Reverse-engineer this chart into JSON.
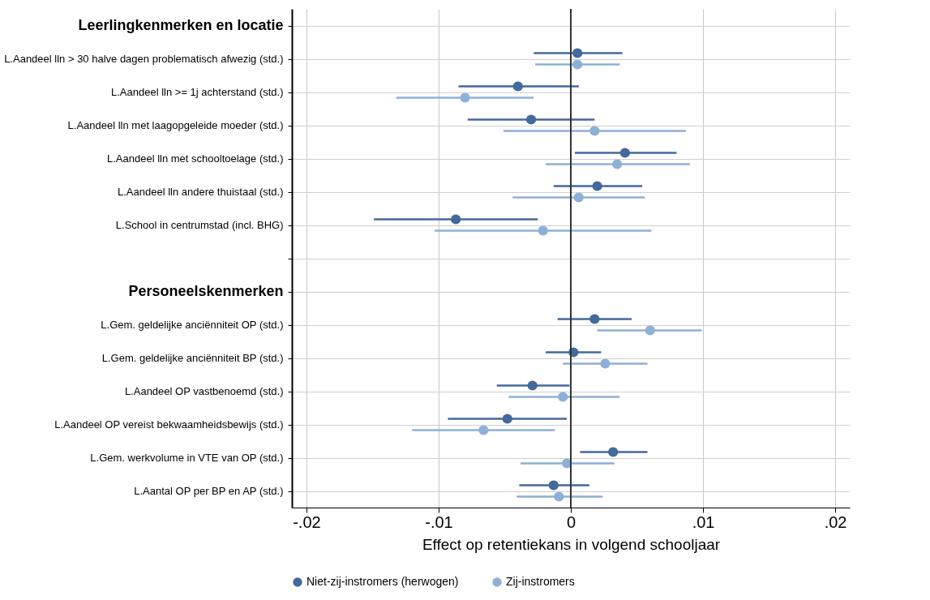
{
  "chart_data": {
    "type": "scatter",
    "orientation": "horizontal",
    "xlabel": "Effect op retentiekans in volgend schooljaar",
    "categories": [
      "Leerlingkenmerken en locatie",
      "L.Aandeel lln > 30 halve dagen problematisch afwezig (std.)",
      "L.Aandeel lln >= 1j achterstand (std.)",
      "L.Aandeel lln met laagopgeleide moeder (std.)",
      "L.Aandeel lln met schooltoelage (std.)",
      "L.Aandeel lln andere thuistaal (std.)",
      "L.School in centrumstad (incl. BHG)",
      null,
      "Personeelskenmerken",
      "L.Gem. geldelijke anciënniteit OP (std.)",
      "L.Gem. geldelijke anciënniteit BP (std.)",
      "L.Aandeel OP vastbenoemd (std.)",
      "L.Aandeel OP vereist bekwaamheidsbewijs (std.)",
      "L.Gem. werkvolume in VTE van OP (std.)",
      "L.Aantal OP per BP en AP (std.)"
    ],
    "series": [
      {
        "name": "Niet-zij-instromers (herwogen)",
        "color": "#44699b",
        "values": [
          null,
          0.0005,
          -0.004,
          -0.003,
          0.0041,
          0.002,
          -0.0087,
          null,
          null,
          0.0018,
          0.0002,
          -0.0029,
          -0.0048,
          0.0032,
          -0.0013
        ],
        "errors": [
          null,
          [
            -0.0028,
            0.0039
          ],
          [
            -0.0085,
            0.0006
          ],
          [
            -0.0078,
            0.0018
          ],
          [
            0.0003,
            0.008
          ],
          [
            -0.0013,
            0.0054
          ],
          [
            -0.0149,
            -0.0025
          ],
          null,
          null,
          [
            -0.001,
            0.0046
          ],
          [
            -0.0019,
            0.0023
          ],
          [
            -0.0056,
            -0.0001
          ],
          [
            -0.0093,
            -0.0003
          ],
          [
            0.0007,
            0.0058
          ],
          [
            -0.0039,
            0.0014
          ]
        ]
      },
      {
        "name": "Zij-instromers",
        "color": "#8fb0d6",
        "values": [
          null,
          0.0005,
          -0.008,
          0.0018,
          0.0035,
          0.0006,
          -0.0021,
          null,
          null,
          0.006,
          0.0026,
          -0.0006,
          -0.0066,
          -0.0003,
          -0.0009
        ],
        "errors": [
          null,
          [
            -0.0027,
            0.0037
          ],
          [
            -0.0132,
            -0.0028
          ],
          [
            -0.0051,
            0.0087
          ],
          [
            -0.0019,
            0.009
          ],
          [
            -0.0044,
            0.0056
          ],
          [
            -0.0103,
            0.0061
          ],
          null,
          null,
          [
            0.002,
            0.0099
          ],
          [
            -0.0006,
            0.0058
          ],
          [
            -0.0047,
            0.0037
          ],
          [
            -0.012,
            -0.0012
          ],
          [
            -0.0038,
            0.0033
          ],
          [
            -0.0041,
            0.0024
          ]
        ]
      }
    ],
    "xlim": [
      -0.0211,
      0.0211
    ],
    "xticks": [
      {
        "value": -0.02,
        "label": "-.02"
      },
      {
        "value": -0.01,
        "label": "-.01"
      },
      0,
      {
        "value": 0.01,
        "label": ".01"
      },
      {
        "value": 0.02,
        "label": ".02"
      }
    ],
    "ref_lines": [
      {
        "axis": "x",
        "value": 0,
        "color": "#333333"
      }
    ],
    "grid": true,
    "legend": "bottom",
    "marker": "circle"
  }
}
